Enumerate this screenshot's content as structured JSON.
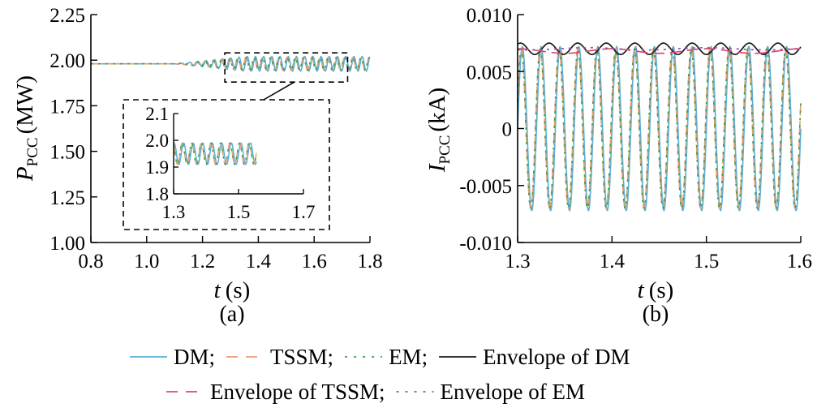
{
  "colors": {
    "dm": "#5aaed6",
    "tssm": "#ee9a6c",
    "em": "#3aa047",
    "env_dm": "#1a1a1a",
    "env_tssm": "#e0476a",
    "env_em": "#8b55b8"
  },
  "chart_data": [
    {
      "panel": "a",
      "caption": "(a)",
      "type": "line",
      "xlabel_var": "t",
      "xlabel_unit": "(s)",
      "ylabel_var": "P",
      "ylabel_sub": "PCC",
      "ylabel_unit": "(MW)",
      "xlim": [
        0.8,
        1.8
      ],
      "ylim": [
        1.0,
        2.25
      ],
      "xticks": [
        0.8,
        1.0,
        1.2,
        1.4,
        1.6,
        1.8
      ],
      "xtick_labels": [
        "0.8",
        "1.0",
        "1.2",
        "1.4",
        "1.6",
        "1.8"
      ],
      "yticks": [
        1.0,
        1.25,
        1.5,
        1.75,
        2.0,
        2.25
      ],
      "ytick_labels": [
        "1.00",
        "1.25",
        "1.50",
        "1.75",
        "2.00",
        "2.25"
      ],
      "series": [
        {
          "name": "DM",
          "key": "dm",
          "baseline": 1.98,
          "osc_start": 1.1,
          "amp_max": 0.04,
          "freq_hz": 34,
          "phase": 0.0
        },
        {
          "name": "TSSM",
          "key": "tssm",
          "baseline": 1.98,
          "osc_start": 1.1,
          "amp_max": 0.035,
          "freq_hz": 34,
          "phase": 0.9
        },
        {
          "name": "EM",
          "key": "em",
          "baseline": 1.98,
          "osc_start": 1.1,
          "amp_max": 0.035,
          "freq_hz": 34,
          "phase": 0.9
        }
      ],
      "zoom_box": {
        "x": [
          1.28,
          1.72
        ],
        "y": [
          1.88,
          2.04
        ]
      },
      "inset": {
        "xlim": [
          1.3,
          1.7
        ],
        "ylim": [
          1.8,
          2.1
        ],
        "xticks": [
          1.3,
          1.5,
          1.7
        ],
        "xtick_labels": [
          "1.3",
          "1.5",
          "1.7"
        ],
        "yticks": [
          1.8,
          1.9,
          2.0,
          2.1
        ],
        "ytick_labels": [
          "1.8",
          "1.9",
          "2.0",
          "2.1"
        ],
        "center": 1.95,
        "amp": 0.04
      }
    },
    {
      "panel": "b",
      "caption": "(b)",
      "type": "line",
      "xlabel_var": "t",
      "xlabel_unit": "(s)",
      "ylabel_var": "I",
      "ylabel_sub": "PCC",
      "ylabel_unit": "(kA)",
      "xlim": [
        1.3,
        1.6
      ],
      "ylim": [
        -0.01,
        0.01
      ],
      "xticks": [
        1.3,
        1.4,
        1.5,
        1.6
      ],
      "xtick_labels": [
        "1.3",
        "1.4",
        "1.5",
        "1.6"
      ],
      "yticks": [
        -0.01,
        -0.005,
        0,
        0.005,
        0.01
      ],
      "ytick_labels": [
        "-0.010",
        "-0.005",
        "0",
        "0.005",
        "0.010"
      ],
      "series": [
        {
          "name": "DM",
          "key": "dm",
          "amp": 0.0072,
          "freq_hz": 50,
          "phase": 0.0
        },
        {
          "name": "TSSM",
          "key": "tssm",
          "amp": 0.007,
          "freq_hz": 50,
          "phase": 0.35
        },
        {
          "name": "EM",
          "key": "em",
          "amp": 0.007,
          "freq_hz": 50,
          "phase": 0.35
        },
        {
          "name": "Envelope of DM",
          "key": "env_dm",
          "center": 0.007,
          "ripple": 0.0005,
          "ripple_freq_hz": 33
        },
        {
          "name": "Envelope of TSSM",
          "key": "env_tssm",
          "center": 0.0068,
          "ripple": 0.0002,
          "ripple_freq_hz": 10
        },
        {
          "name": "Envelope of EM",
          "key": "env_em",
          "center": 0.007,
          "ripple": 0.0001,
          "ripple_freq_hz": 8
        }
      ]
    }
  ],
  "legend": {
    "row1": [
      {
        "key": "dm",
        "style": "solid",
        "label": "DM;"
      },
      {
        "key": "tssm",
        "style": "dashed",
        "label": "TSSM;"
      },
      {
        "key": "em",
        "style": "dotted",
        "label": "EM;"
      },
      {
        "key": "env_dm",
        "style": "solid",
        "label": "Envelope of DM"
      }
    ],
    "row2": [
      {
        "key": "env_tssm",
        "style": "dashed",
        "label": "Envelope of TSSM;"
      },
      {
        "key": "env_em",
        "style": "dotted",
        "label": "Envelope of EM"
      }
    ]
  }
}
